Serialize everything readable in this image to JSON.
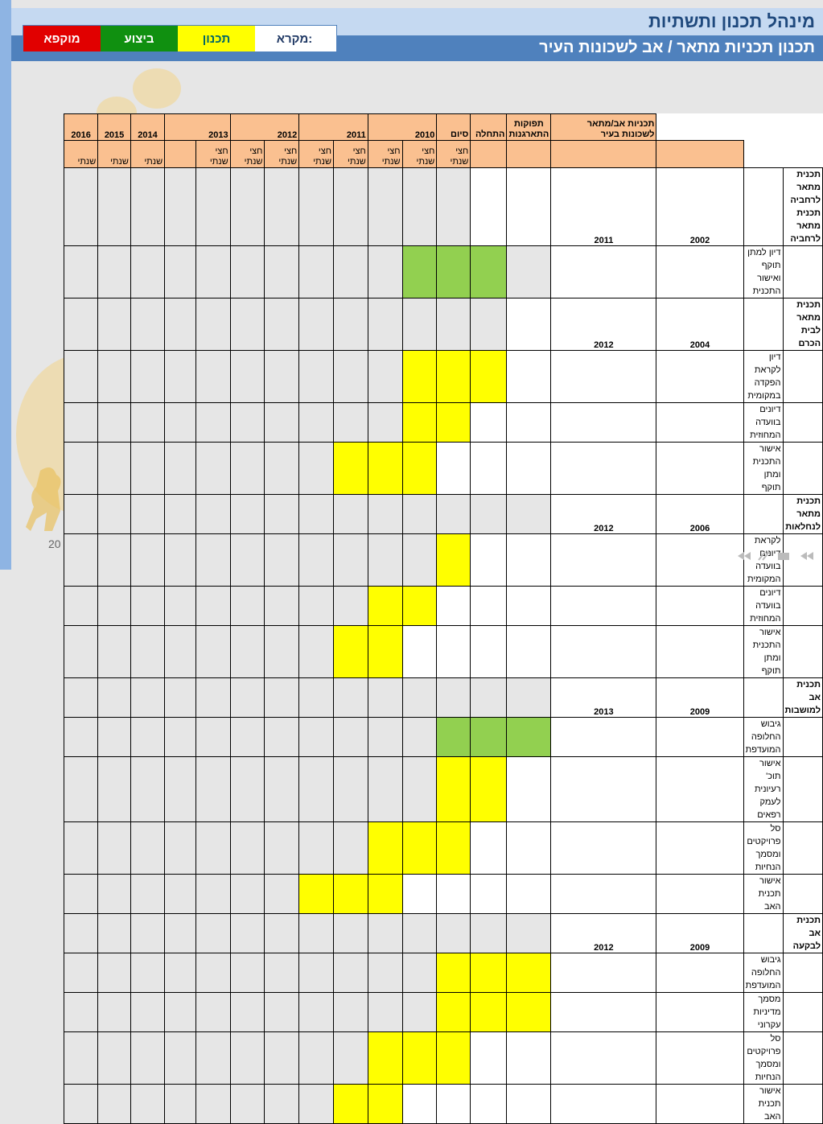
{
  "header": {
    "title": "מינהל תכנון ותשתיות",
    "subtitle": "תכנון תכניות מתאר / אב לשכונות העיר"
  },
  "legend": {
    "label": "מקרא:",
    "planning": "תכנון",
    "execution": "ביצוע",
    "frozen": "מוקפא"
  },
  "colors": {
    "planning": "#ffff00",
    "execution": "#109010",
    "frozen": "#e10000",
    "bar_green": "#92d050",
    "header_fill": "#fac090",
    "title_bar": "#4f81bd"
  },
  "table": {
    "col_plan": "תכניות אב/מתאר לשכונות בעיר",
    "col_tasks": "תפוקות התארגנות",
    "col_start": "התחלה",
    "col_end": "סיום",
    "years": [
      "2010",
      "2011",
      "2012",
      "2013",
      "2014",
      "2015",
      "2016"
    ],
    "half_label": "חצי שנתי",
    "year_label": "שנתי",
    "rows": [
      {
        "plan": "תכנית מתאר לרחביה תכנית מתאר לרחביה",
        "task": "",
        "start": "2002",
        "end": "2011",
        "cells": [
          "w",
          "w",
          "e",
          "e",
          "e",
          "e",
          "e",
          "e",
          "e",
          "e",
          "e",
          "e",
          "e",
          "e",
          "e",
          "e"
        ]
      },
      {
        "plan": "",
        "task": "דיון למתן תוקף ואישור התכנית",
        "start": "",
        "end": "",
        "cells": [
          "e",
          "g",
          "g",
          "g",
          "e",
          "e",
          "e",
          "e",
          "e",
          "e",
          "e",
          "e",
          "e",
          "e",
          "e",
          "e"
        ]
      },
      {
        "plan": "תכנית מתאר לבית הכרם",
        "task": "",
        "start": "2004",
        "end": "2012",
        "cells": [
          "w",
          "e",
          "e",
          "e",
          "e",
          "e",
          "e",
          "e",
          "e",
          "e",
          "e",
          "e",
          "e",
          "e",
          "e",
          "e"
        ]
      },
      {
        "plan": "",
        "task": "דיון לקראת הפקדה במקומית",
        "start": "",
        "end": "",
        "cells": [
          "w",
          "y",
          "y",
          "y",
          "e",
          "e",
          "e",
          "e",
          "e",
          "e",
          "e",
          "e",
          "e",
          "e",
          "e",
          "e"
        ]
      },
      {
        "plan": "",
        "task": "דיונים בוועדה המחוזית",
        "start": "",
        "end": "",
        "cells": [
          "w",
          "w",
          "y",
          "y",
          "e",
          "e",
          "e",
          "e",
          "e",
          "e",
          "e",
          "e",
          "e",
          "e",
          "e",
          "e"
        ]
      },
      {
        "plan": "",
        "task": "אישור התכנית ומתן תוקף",
        "start": "",
        "end": "",
        "cells": [
          "w",
          "w",
          "w",
          "y",
          "y",
          "y",
          "e",
          "e",
          "e",
          "e",
          "e",
          "e",
          "e",
          "e",
          "e",
          "e"
        ]
      },
      {
        "plan": "תכנית מתאר לנחלאות",
        "task": "",
        "start": "2006",
        "end": "2012",
        "cells": [
          "e",
          "e",
          "e",
          "e",
          "e",
          "e",
          "e",
          "e",
          "e",
          "e",
          "e",
          "e",
          "e",
          "e",
          "e",
          "e"
        ]
      },
      {
        "plan": "",
        "task": "לקראת דיונים בוועדה המקומית",
        "start": "",
        "end": "",
        "cells": [
          "w",
          "w",
          "y",
          "e",
          "e",
          "e",
          "e",
          "e",
          "e",
          "e",
          "e",
          "e",
          "e",
          "e",
          "e",
          "e"
        ]
      },
      {
        "plan": "",
        "task": "דיונים בוועדה המחוזית",
        "start": "",
        "end": "",
        "cells": [
          "w",
          "w",
          "w",
          "y",
          "y",
          "e",
          "e",
          "e",
          "e",
          "e",
          "e",
          "e",
          "e",
          "e",
          "e",
          "e"
        ]
      },
      {
        "plan": "",
        "task": "אישור התכנית ומתן תוקף",
        "start": "",
        "end": "",
        "cells": [
          "w",
          "w",
          "w",
          "w",
          "y",
          "y",
          "e",
          "e",
          "e",
          "e",
          "e",
          "e",
          "e",
          "e",
          "e",
          "e"
        ]
      },
      {
        "plan": "תכנית אב למושבות",
        "task": "",
        "start": "2009",
        "end": "2013",
        "cells": [
          "e",
          "e",
          "e",
          "e",
          "e",
          "e",
          "e",
          "e",
          "e",
          "e",
          "e",
          "e",
          "e",
          "e",
          "e",
          "e"
        ]
      },
      {
        "plan": "",
        "task": "גיבוש החלופה המועדפת",
        "start": "",
        "end": "",
        "cells": [
          "g",
          "g",
          "g",
          "e",
          "e",
          "e",
          "e",
          "e",
          "e",
          "e",
          "e",
          "e",
          "e",
          "e",
          "e",
          "e"
        ]
      },
      {
        "plan": "",
        "task": "אישור תוכ' רעיונית לעמק רפאים",
        "start": "",
        "end": "",
        "cells": [
          "w",
          "y",
          "y",
          "e",
          "e",
          "e",
          "e",
          "e",
          "e",
          "e",
          "e",
          "e",
          "e",
          "e",
          "e",
          "e"
        ]
      },
      {
        "plan": "",
        "task": "סל פרויקטים ומסמך הנחיות",
        "start": "",
        "end": "",
        "cells": [
          "w",
          "w",
          "y",
          "y",
          "y",
          "e",
          "e",
          "e",
          "e",
          "e",
          "e",
          "e",
          "e",
          "e",
          "e",
          "e"
        ]
      },
      {
        "plan": "",
        "task": "אישור תכנית האב",
        "start": "",
        "end": "",
        "cells": [
          "w",
          "w",
          "w",
          "w",
          "y",
          "y",
          "y",
          "e",
          "e",
          "e",
          "e",
          "e",
          "e",
          "e",
          "e",
          "e"
        ]
      },
      {
        "plan": "תכנית אב לבקעה",
        "task": "",
        "start": "2009",
        "end": "2012",
        "cells": [
          "e",
          "e",
          "e",
          "e",
          "e",
          "e",
          "e",
          "e",
          "e",
          "e",
          "e",
          "e",
          "e",
          "e",
          "e",
          "e"
        ]
      },
      {
        "plan": "",
        "task": "גיבוש החלופה המועדפת",
        "start": "",
        "end": "",
        "cells": [
          "y",
          "y",
          "y",
          "e",
          "e",
          "e",
          "e",
          "e",
          "e",
          "e",
          "e",
          "e",
          "e",
          "e",
          "e",
          "e"
        ]
      },
      {
        "plan": "",
        "task": "מסמך מדיניות עקרוני",
        "start": "",
        "end": "",
        "cells": [
          "y",
          "y",
          "y",
          "e",
          "e",
          "e",
          "e",
          "e",
          "e",
          "e",
          "e",
          "e",
          "e",
          "e",
          "e",
          "e"
        ]
      },
      {
        "plan": "",
        "task": "סל פרויקטים ומסמך הנחיות",
        "start": "",
        "end": "",
        "cells": [
          "w",
          "w",
          "y",
          "y",
          "y",
          "e",
          "e",
          "e",
          "e",
          "e",
          "e",
          "e",
          "e",
          "e",
          "e",
          "e"
        ]
      },
      {
        "plan": "",
        "task": "אישור תכנית האב",
        "start": "",
        "end": "",
        "cells": [
          "w",
          "w",
          "w",
          "w",
          "y",
          "y",
          "e",
          "e",
          "e",
          "e",
          "e",
          "e",
          "e",
          "e",
          "e",
          "e"
        ]
      }
    ]
  },
  "page_number": "20"
}
